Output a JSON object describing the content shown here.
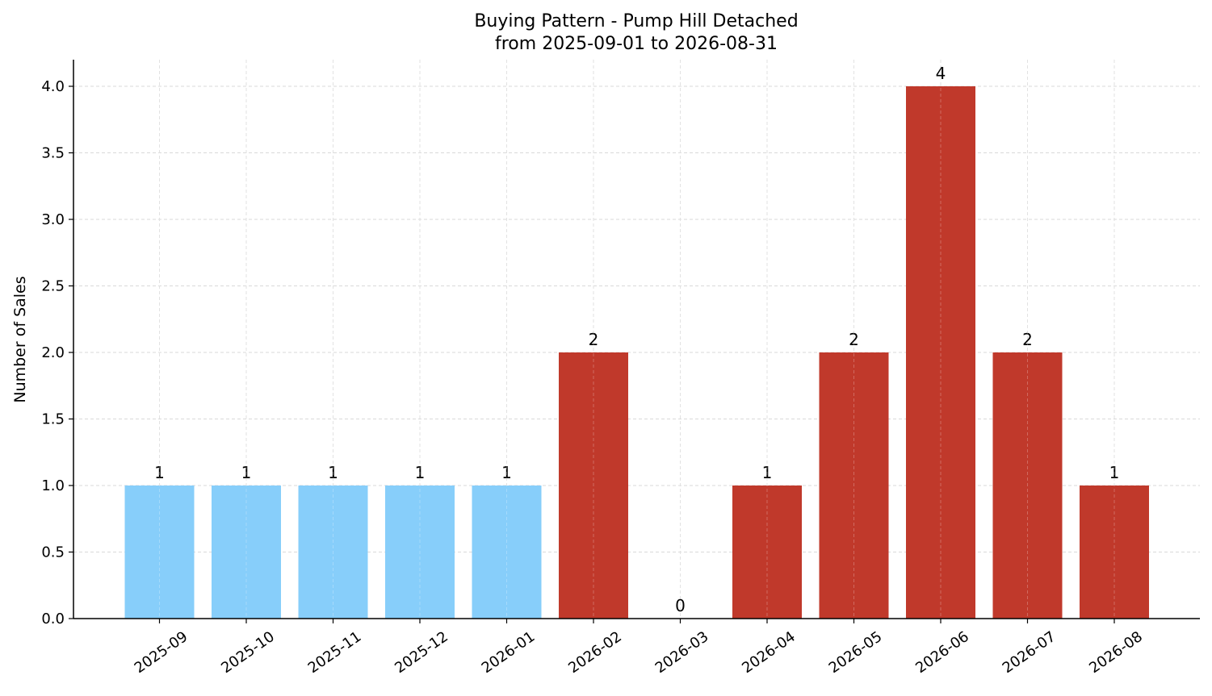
{
  "chart_data": {
    "type": "bar",
    "title": "Buying Pattern - Pump Hill Detached",
    "subtitle": "from 2025-09-01 to 2026-08-31",
    "xlabel": "",
    "ylabel": "Number of Sales",
    "categories": [
      "2025-09",
      "2025-10",
      "2025-11",
      "2025-12",
      "2026-01",
      "2026-02",
      "2026-03",
      "2026-04",
      "2026-05",
      "2026-06",
      "2026-07",
      "2026-08"
    ],
    "values": [
      1,
      1,
      1,
      1,
      1,
      2,
      0,
      1,
      2,
      4,
      2,
      1
    ],
    "bar_colors": [
      "#87CEFA",
      "#87CEFA",
      "#87CEFA",
      "#87CEFA",
      "#87CEFA",
      "#C0392B",
      "#C0392B",
      "#C0392B",
      "#C0392B",
      "#C0392B",
      "#C0392B",
      "#C0392B"
    ],
    "data_labels": [
      "1",
      "1",
      "1",
      "1",
      "1",
      "2",
      "0",
      "1",
      "2",
      "4",
      "2",
      "1"
    ],
    "ylim": [
      0,
      4.2
    ],
    "yticks": [
      0.0,
      0.5,
      1.0,
      1.5,
      2.0,
      2.5,
      3.0,
      3.5,
      4.0
    ],
    "ytick_labels": [
      "0.0",
      "0.5",
      "1.0",
      "1.5",
      "2.0",
      "2.5",
      "3.0",
      "3.5",
      "4.0"
    ],
    "grid": true,
    "legend": "none"
  }
}
